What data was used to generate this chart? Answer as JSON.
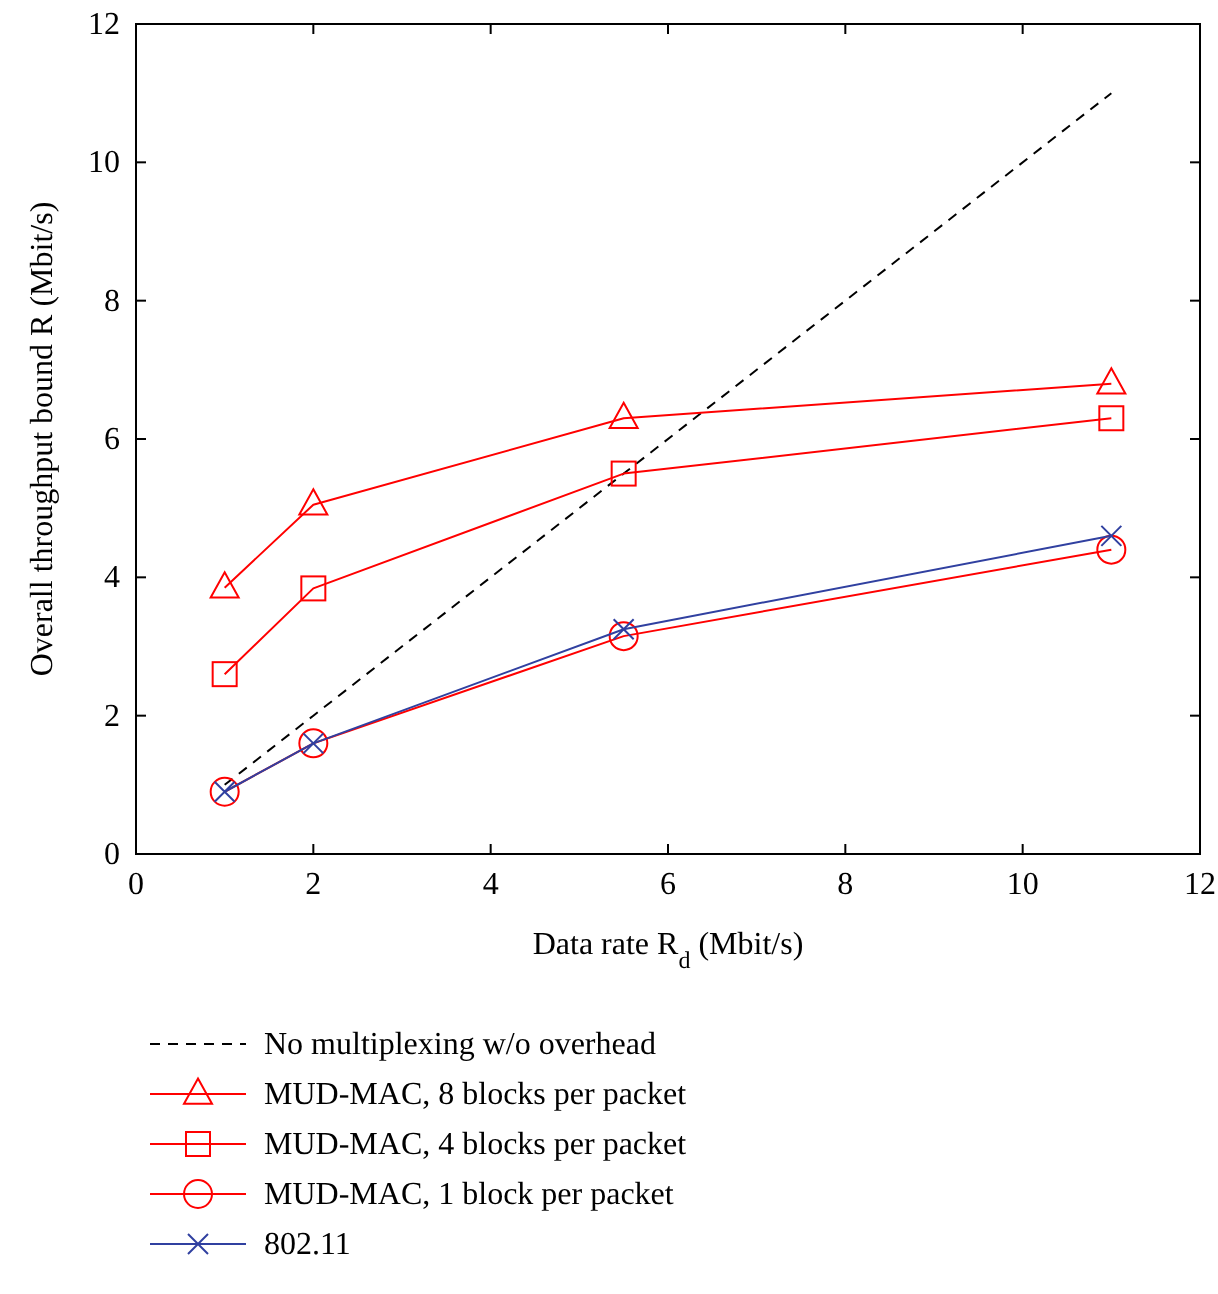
{
  "chart_data": {
    "type": "line",
    "xlabel": "Data rate R$_{d}$ (Mbit/s)",
    "ylabel": "Overall throughput bound R (Mbit/s)",
    "xlim": [
      0,
      12
    ],
    "ylim": [
      0,
      12
    ],
    "xticks": [
      0,
      2,
      4,
      6,
      8,
      10,
      12
    ],
    "yticks": [
      0,
      2,
      4,
      6,
      8,
      10,
      12
    ],
    "legend": "bottom",
    "x": [
      1,
      2,
      5.5,
      11
    ],
    "series": [
      {
        "name": "No multiplexing w/o overhead",
        "color": "#000000",
        "values": [
          1,
          2,
          5.5,
          11
        ],
        "line_style": "dashed",
        "marker": "none"
      },
      {
        "name": "MUD-MAC, 8 blocks per packet",
        "color": "#ff0000",
        "values": [
          3.85,
          5.05,
          6.3,
          6.8
        ],
        "marker": "triangle"
      },
      {
        "name": "MUD-MAC, 4 blocks per packet",
        "color": "#ff0000",
        "values": [
          2.6,
          3.84,
          5.5,
          6.3
        ],
        "marker": "square"
      },
      {
        "name": "MUD-MAC, 1 block per packet",
        "color": "#ff0000",
        "values": [
          0.9,
          1.6,
          3.15,
          4.4
        ],
        "marker": "circle"
      },
      {
        "name": "802.11",
        "color": "#3040a0",
        "values": [
          0.9,
          1.6,
          3.25,
          4.6
        ],
        "marker": "cross"
      }
    ]
  }
}
